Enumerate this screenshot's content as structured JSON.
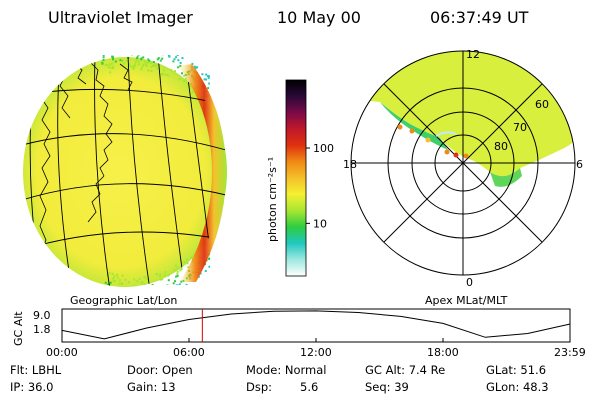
{
  "header": {
    "instrument": "Ultraviolet Imager",
    "date": "10 May 00",
    "time": "06:37:49 UT"
  },
  "colorbar": {
    "unit_label": "photon cm⁻²s⁻¹",
    "ticks": [
      {
        "label": "100",
        "value": 100
      },
      {
        "label": "10",
        "value": 10
      }
    ],
    "range": [
      2,
      800
    ],
    "colors": [
      "#ffffff",
      "#9fe8e0",
      "#20c8c0",
      "#2ecc40",
      "#a6e632",
      "#f5f032",
      "#f5c02a",
      "#f08a14",
      "#e03010",
      "#c0182a",
      "#7a0a48",
      "#2a0838",
      "#000000"
    ]
  },
  "left_panel": {
    "caption": "Geographic Lat/Lon",
    "glow_colors": [
      "#f5f032",
      "#a6e632",
      "#2ecc40",
      "#20c8c0",
      "#f08a14",
      "#e03010"
    ]
  },
  "polar_panel": {
    "caption": "Apex MLat/MLT",
    "mlt_labels": {
      "top": "12",
      "left": "18",
      "right": "6",
      "bottom": "0"
    },
    "lat_labels": [
      "60",
      "70",
      "80"
    ]
  },
  "altitude_plot": {
    "ylabel": "GC Alt",
    "yticks": [
      "9.0",
      "1.8"
    ],
    "xticks": [
      "00:00",
      "06:00",
      "12:00",
      "18:00",
      "23:59"
    ],
    "curve_hours": [
      0,
      2,
      4,
      6,
      8,
      10,
      12,
      14,
      16,
      18,
      20,
      22,
      23.98
    ],
    "curve_re": [
      4.0,
      1.8,
      4.6,
      6.8,
      8.2,
      8.9,
      9.0,
      8.6,
      7.6,
      5.8,
      2.2,
      3.2,
      5.6
    ],
    "ylim": [
      1.0,
      9.5
    ],
    "marker_hour": 6.63,
    "marker_color": "#dd0000"
  },
  "info": {
    "flt": "Flt: LBHL",
    "door": "Door: Open",
    "mode": "Mode: Normal",
    "gc_alt": "GC Alt: 7.4 Re",
    "glat": "GLat: 51.6",
    "ip": "IP: 36.0",
    "gain": "Gain: 13",
    "dsp": "Dsp:",
    "dsp_val": "5.6",
    "seq": "Seq: 39",
    "glon": "GLon: 48.3"
  }
}
